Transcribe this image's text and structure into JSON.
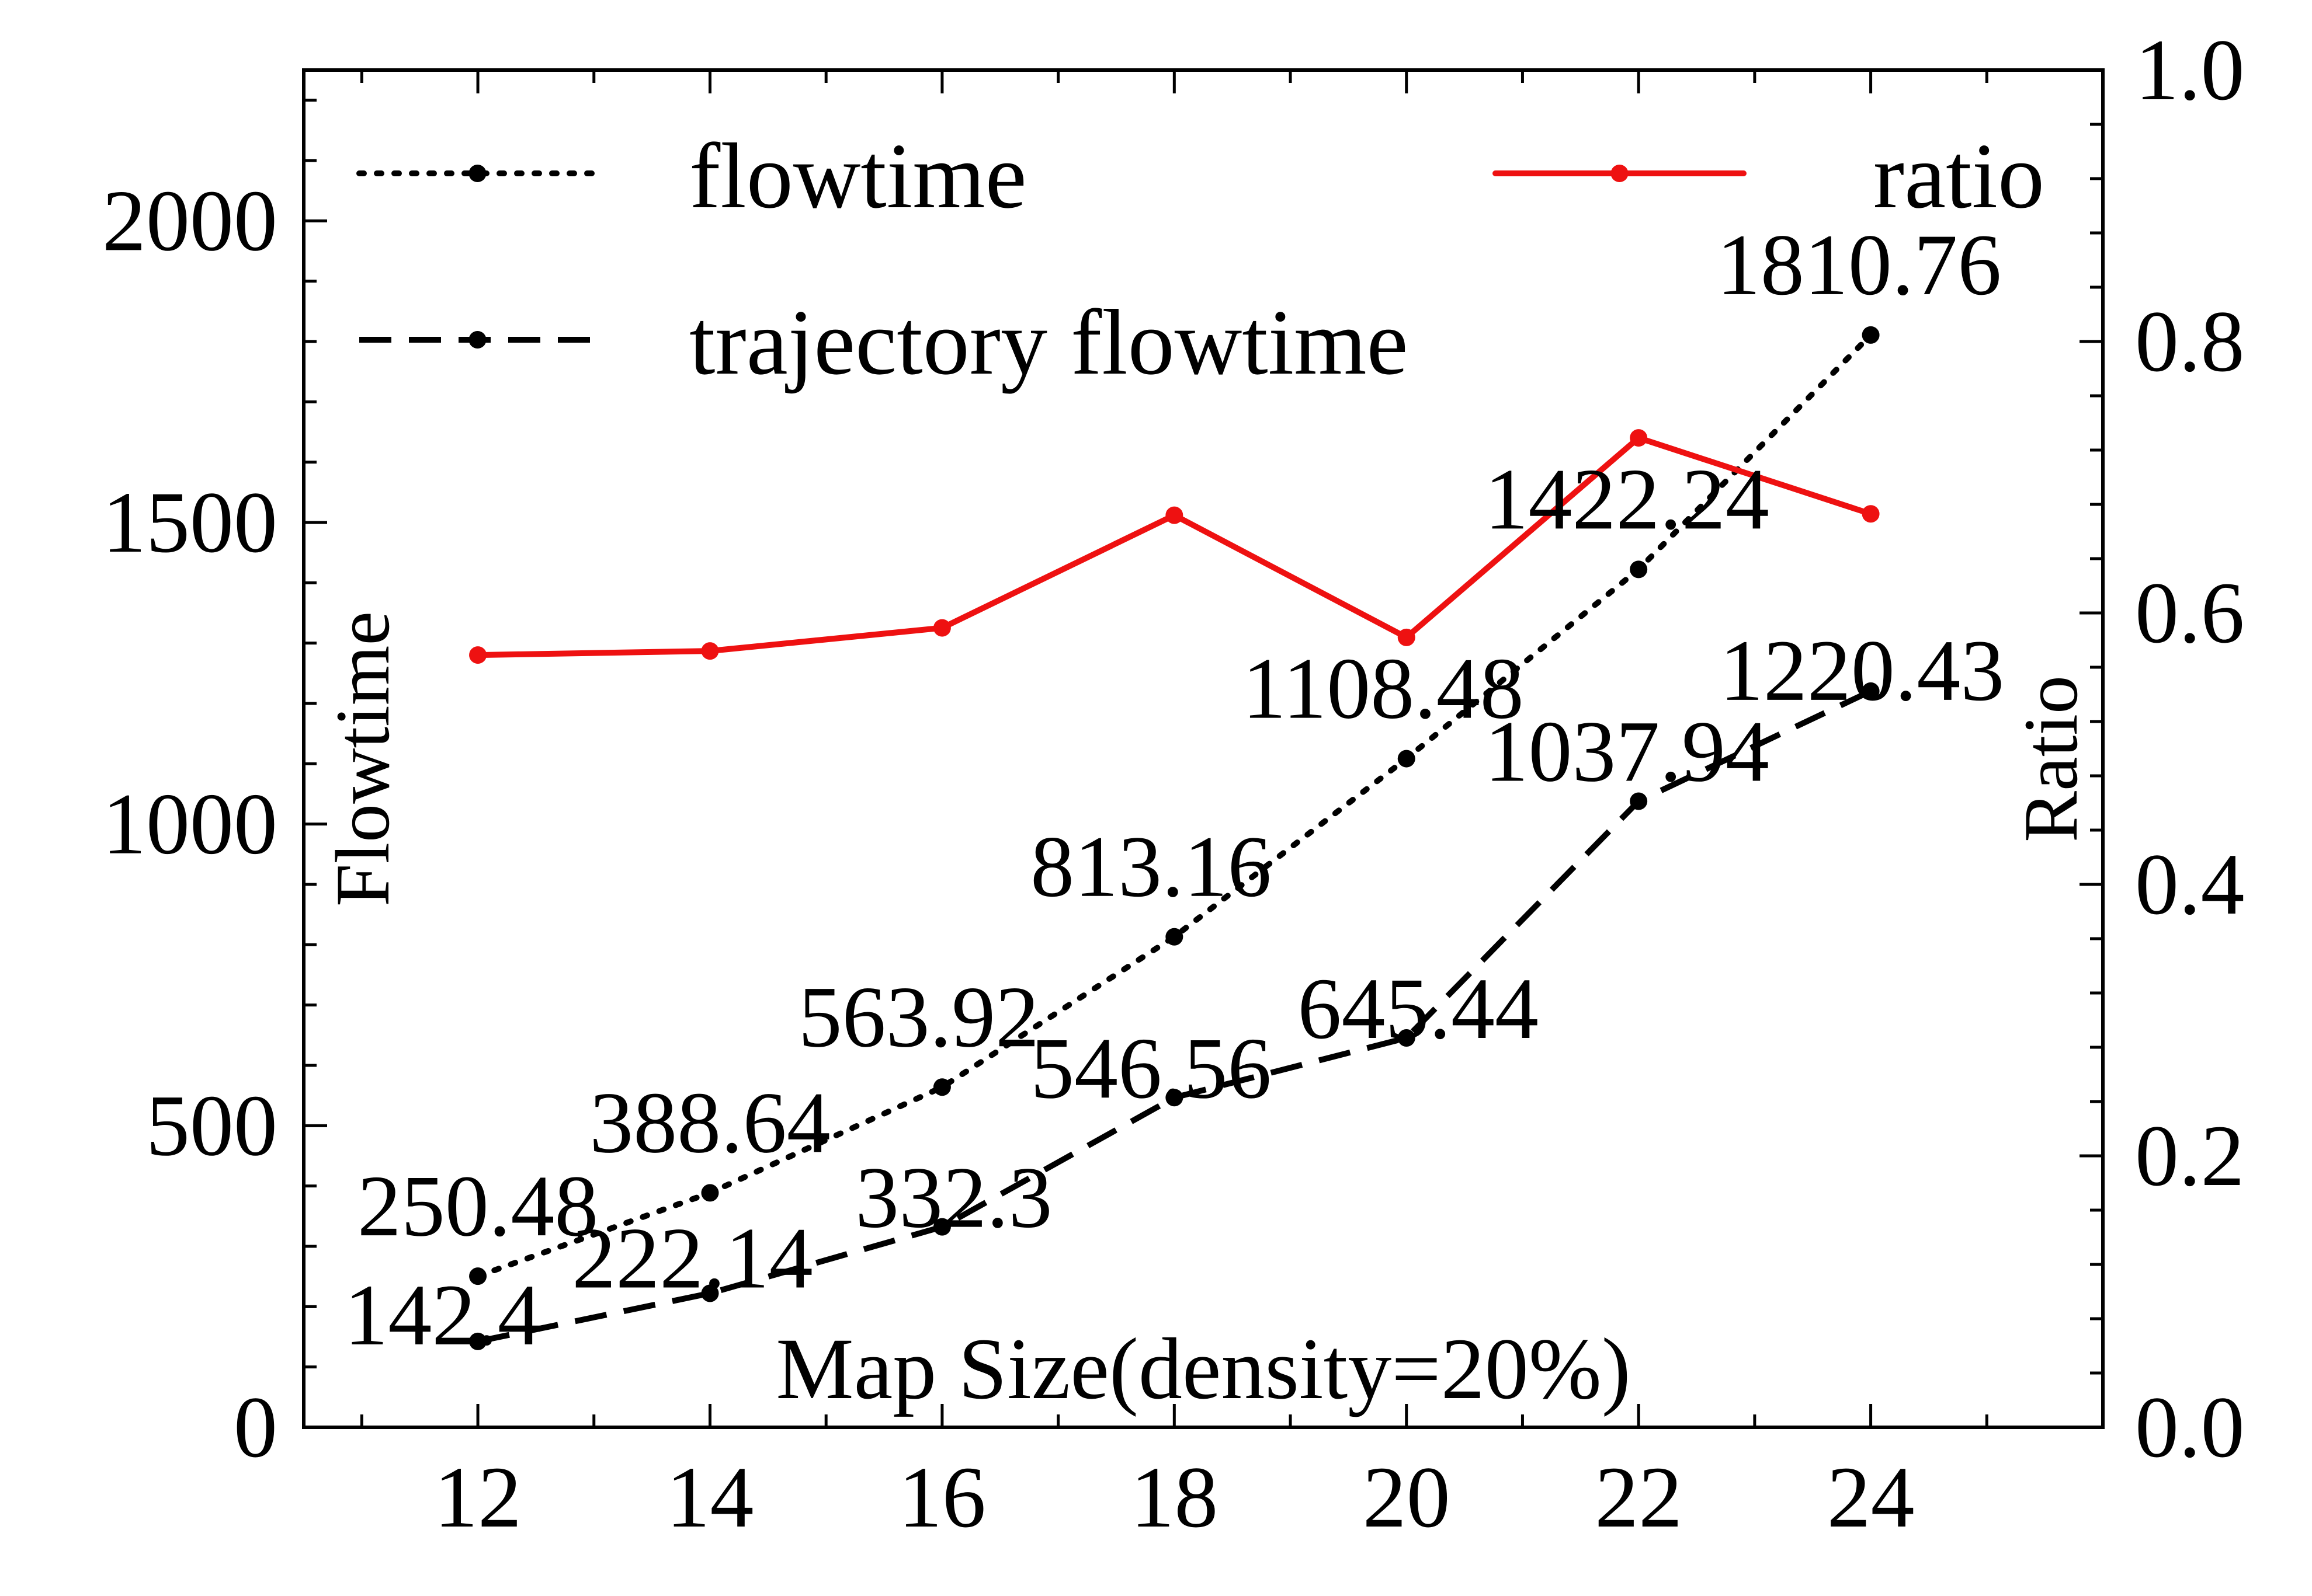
{
  "chart_data": {
    "type": "line",
    "xlabel": "Map Size(density=20%)",
    "ylabel": "Flowtime",
    "y2label": "Ratio",
    "x": [
      12,
      14,
      16,
      18,
      20,
      22,
      24
    ],
    "xlim": [
      10.5,
      26
    ],
    "ylim": [
      0,
      2250
    ],
    "y2lim": [
      0.0,
      1.0
    ],
    "xticks": [
      "12",
      "14",
      "16",
      "18",
      "20",
      "22",
      "24"
    ],
    "yticks": [
      "0",
      "500",
      "1000",
      "1500",
      "2000"
    ],
    "y2ticks": [
      "0.0",
      "0.2",
      "0.4",
      "0.6",
      "0.8",
      "1.0"
    ],
    "grid": false,
    "legend_position": "top",
    "series": [
      {
        "name": "flowtime",
        "axis": "left",
        "style": "dotted",
        "color": "#000000",
        "values": [
          250.48,
          388.64,
          563.92,
          813.16,
          1108.48,
          1422.24,
          1810.76
        ],
        "labels": [
          "250.48",
          "388.64",
          "563.92",
          "813.16",
          "1108.48",
          "1422.24",
          "1810.76"
        ]
      },
      {
        "name": "trajectory flowtime",
        "axis": "left",
        "style": "dashed",
        "color": "#000000",
        "values": [
          142.4,
          222.14,
          332.3,
          546.56,
          645.44,
          1037.94,
          1220.43
        ],
        "labels": [
          "142.4",
          "222.14",
          "332.3",
          "546.56",
          "645.44",
          "1037.94",
          "1220.43"
        ]
      },
      {
        "name": "ratio",
        "axis": "right",
        "style": "solid",
        "color": "#ee1111",
        "values": [
          0.569,
          0.572,
          0.589,
          0.672,
          0.582,
          0.729,
          0.673
        ]
      }
    ]
  }
}
